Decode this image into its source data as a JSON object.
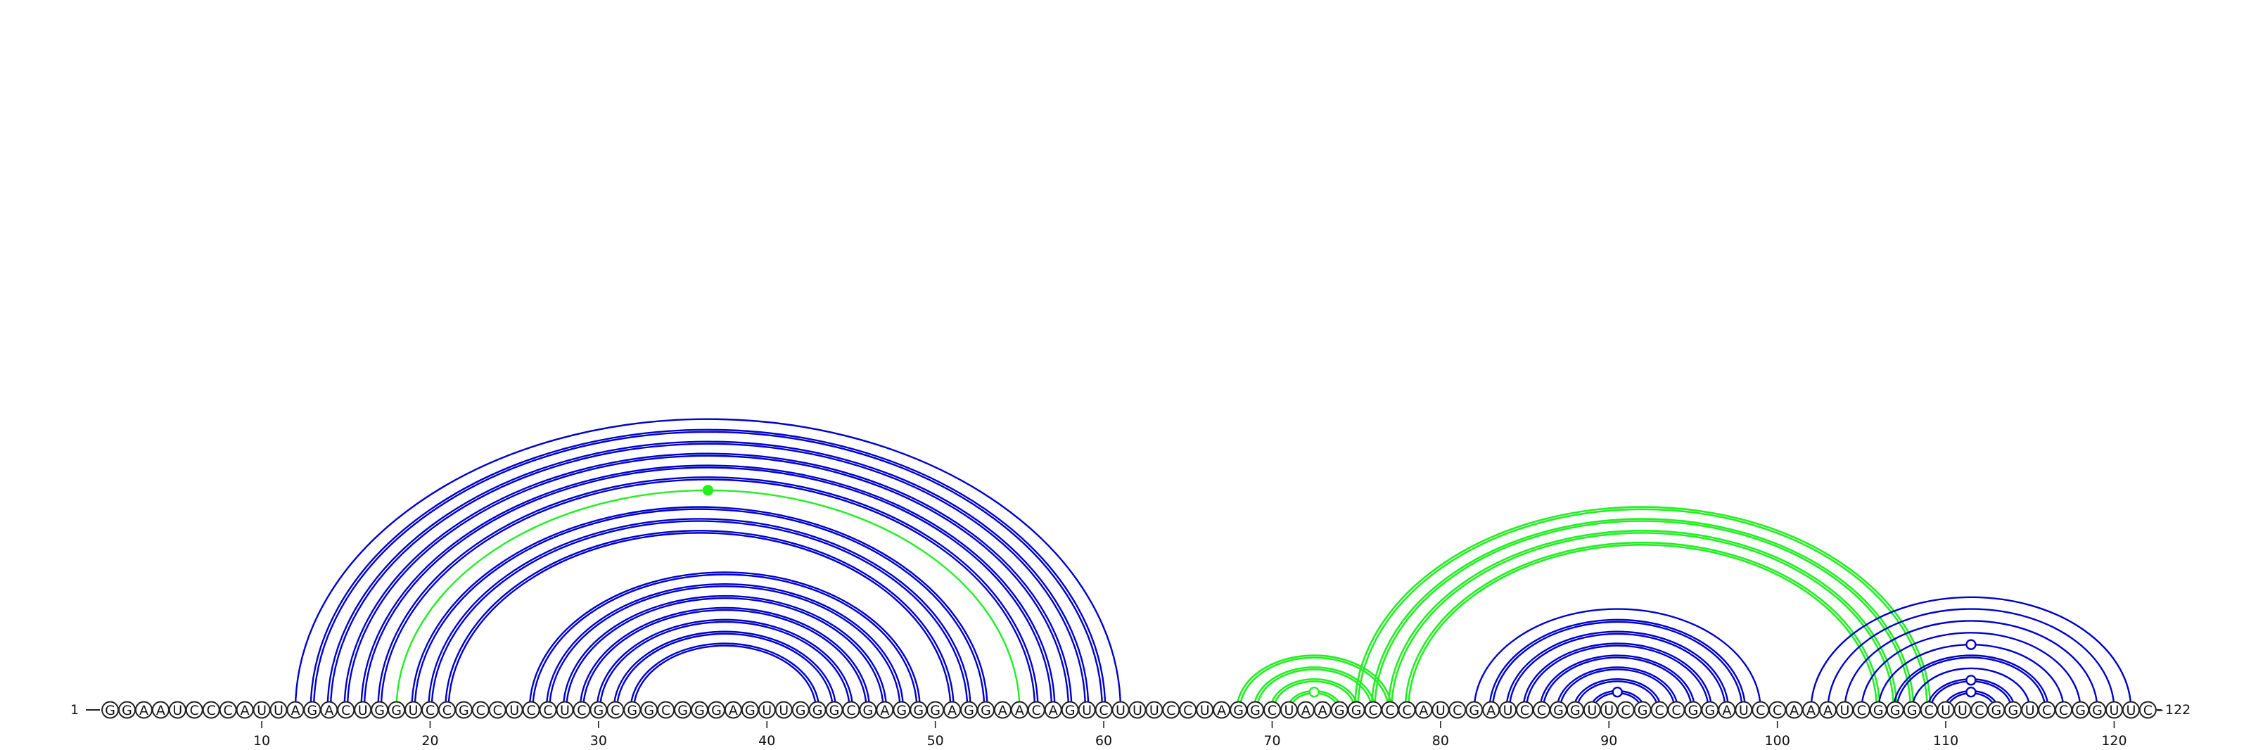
{
  "sequence": "GGAAUCCCAUUAGACUGGUCCGCCUCCUCGCGGCGGGAGUUGGGCGAGGGAGGAACAGUCUUUCCUAGGCUAAGGCCCAUCGAUCCGGUUCGCCGGAUCCAAAUCGGGCUUCGGUCCGGUUC",
  "start_label": "1",
  "end_label": "122",
  "ticks": [
    {
      "pos": 10,
      "label": "10"
    },
    {
      "pos": 20,
      "label": "20"
    },
    {
      "pos": 30,
      "label": "30"
    },
    {
      "pos": 40,
      "label": "40"
    },
    {
      "pos": 50,
      "label": "50"
    },
    {
      "pos": 60,
      "label": "60"
    },
    {
      "pos": 70,
      "label": "70"
    },
    {
      "pos": 80,
      "label": "80"
    },
    {
      "pos": 90,
      "label": "90"
    },
    {
      "pos": 100,
      "label": "100"
    },
    {
      "pos": 110,
      "label": "110"
    },
    {
      "pos": 120,
      "label": "120"
    }
  ],
  "colors": {
    "blue": "#0000cc",
    "green": "#22ee22"
  },
  "pairs": [
    {
      "i": 12,
      "j": 61,
      "color": "blue",
      "style": "single"
    },
    {
      "i": 13,
      "j": 60,
      "color": "blue",
      "style": "double"
    },
    {
      "i": 14,
      "j": 59,
      "color": "blue",
      "style": "double"
    },
    {
      "i": 15,
      "j": 58,
      "color": "blue",
      "style": "double"
    },
    {
      "i": 16,
      "j": 57,
      "color": "blue",
      "style": "double"
    },
    {
      "i": 17,
      "j": 56,
      "color": "blue",
      "style": "double"
    },
    {
      "i": 18,
      "j": 55,
      "color": "green",
      "style": "single",
      "marker": "filled"
    },
    {
      "i": 19,
      "j": 53,
      "color": "blue",
      "style": "double"
    },
    {
      "i": 20,
      "j": 52,
      "color": "blue",
      "style": "double"
    },
    {
      "i": 21,
      "j": 51,
      "color": "blue",
      "style": "double"
    },
    {
      "i": 26,
      "j": 49,
      "color": "blue",
      "style": "double"
    },
    {
      "i": 27,
      "j": 48,
      "color": "blue",
      "style": "double"
    },
    {
      "i": 28,
      "j": 47,
      "color": "blue",
      "style": "double"
    },
    {
      "i": 29,
      "j": 46,
      "color": "blue",
      "style": "double"
    },
    {
      "i": 30,
      "j": 45,
      "color": "blue",
      "style": "double"
    },
    {
      "i": 31,
      "j": 44,
      "color": "blue",
      "style": "double"
    },
    {
      "i": 32,
      "j": 43,
      "color": "blue",
      "style": "double"
    },
    {
      "i": 68,
      "j": 77,
      "color": "green",
      "style": "double"
    },
    {
      "i": 69,
      "j": 76,
      "color": "green",
      "style": "double"
    },
    {
      "i": 70,
      "j": 75,
      "color": "green",
      "style": "double"
    },
    {
      "i": 71,
      "j": 74,
      "color": "green",
      "style": "double",
      "marker": "open"
    },
    {
      "i": 75,
      "j": 109,
      "color": "green",
      "style": "double"
    },
    {
      "i": 76,
      "j": 108,
      "color": "green",
      "style": "double"
    },
    {
      "i": 77,
      "j": 107,
      "color": "green",
      "style": "double"
    },
    {
      "i": 78,
      "j": 106,
      "color": "green",
      "style": "double"
    },
    {
      "i": 82,
      "j": 99,
      "color": "blue",
      "style": "single"
    },
    {
      "i": 83,
      "j": 98,
      "color": "blue",
      "style": "double"
    },
    {
      "i": 84,
      "j": 97,
      "color": "blue",
      "style": "double"
    },
    {
      "i": 85,
      "j": 96,
      "color": "blue",
      "style": "double"
    },
    {
      "i": 86,
      "j": 95,
      "color": "blue",
      "style": "double"
    },
    {
      "i": 87,
      "j": 94,
      "color": "blue",
      "style": "double"
    },
    {
      "i": 88,
      "j": 93,
      "color": "blue",
      "style": "double"
    },
    {
      "i": 89,
      "j": 92,
      "color": "blue",
      "style": "double",
      "marker": "open"
    },
    {
      "i": 102,
      "j": 121,
      "color": "blue",
      "style": "single"
    },
    {
      "i": 103,
      "j": 120,
      "color": "blue",
      "style": "single"
    },
    {
      "i": 104,
      "j": 119,
      "color": "blue",
      "style": "single"
    },
    {
      "i": 105,
      "j": 118,
      "color": "blue",
      "style": "single"
    },
    {
      "i": 106,
      "j": 117,
      "color": "blue",
      "style": "single",
      "marker": "open"
    },
    {
      "i": 107,
      "j": 116,
      "color": "blue",
      "style": "double"
    },
    {
      "i": 108,
      "j": 115,
      "color": "blue",
      "style": "single"
    },
    {
      "i": 109,
      "j": 114,
      "color": "blue",
      "style": "double",
      "marker": "open"
    },
    {
      "i": 110,
      "j": 113,
      "color": "blue",
      "style": "double",
      "marker": "open"
    }
  ]
}
